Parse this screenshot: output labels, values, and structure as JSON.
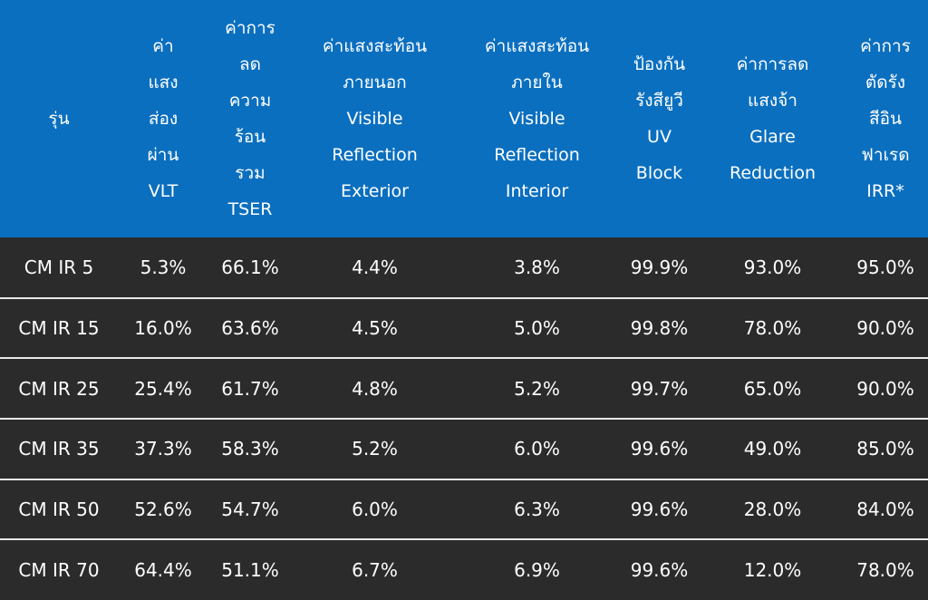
{
  "table": {
    "header": [
      [
        "รุ่น"
      ],
      [
        "ค่า",
        "แสง",
        "ส่อง",
        "ผ่าน",
        "VLT"
      ],
      [
        "ค่าการ",
        "ลด",
        "ความ",
        "ร้อน",
        "รวม",
        "TSER"
      ],
      [
        "ค่าแสงสะท้อน",
        "ภายนอก",
        "Visible",
        "Reflection",
        "Exterior"
      ],
      [
        "ค่าแสงสะท้อน",
        "ภายใน",
        "Visible",
        "Reflection",
        "Interior"
      ],
      [
        "ป้องกัน",
        "รังสียูวี",
        "UV",
        "Block"
      ],
      [
        "ค่าการลด",
        "แสงจ้า",
        "Glare",
        "Reduction"
      ],
      [
        "ค่าการ",
        "ตัดรัง",
        "สีอิน",
        "ฟาเรด",
        "IRR*"
      ]
    ],
    "rows": [
      [
        "CM IR 5",
        "5.3%",
        "66.1%",
        "4.4%",
        "3.8%",
        "99.9%",
        "93.0%",
        "95.0%"
      ],
      [
        "CM IR 15",
        "16.0%",
        "63.6%",
        "4.5%",
        "5.0%",
        "99.8%",
        "78.0%",
        "90.0%"
      ],
      [
        "CM IR 25",
        "25.4%",
        "61.7%",
        "4.8%",
        "5.2%",
        "99.7%",
        "65.0%",
        "90.0%"
      ],
      [
        "CM IR 35",
        "37.3%",
        "58.3%",
        "5.2%",
        "6.0%",
        "99.6%",
        "49.0%",
        "85.0%"
      ],
      [
        "CM IR 50",
        "52.6%",
        "54.7%",
        "6.0%",
        "6.3%",
        "99.6%",
        "28.0%",
        "84.0%"
      ],
      [
        "CM IR 70",
        "64.4%",
        "51.1%",
        "6.7%",
        "6.9%",
        "99.6%",
        "12.0%",
        "78.0%"
      ]
    ]
  }
}
